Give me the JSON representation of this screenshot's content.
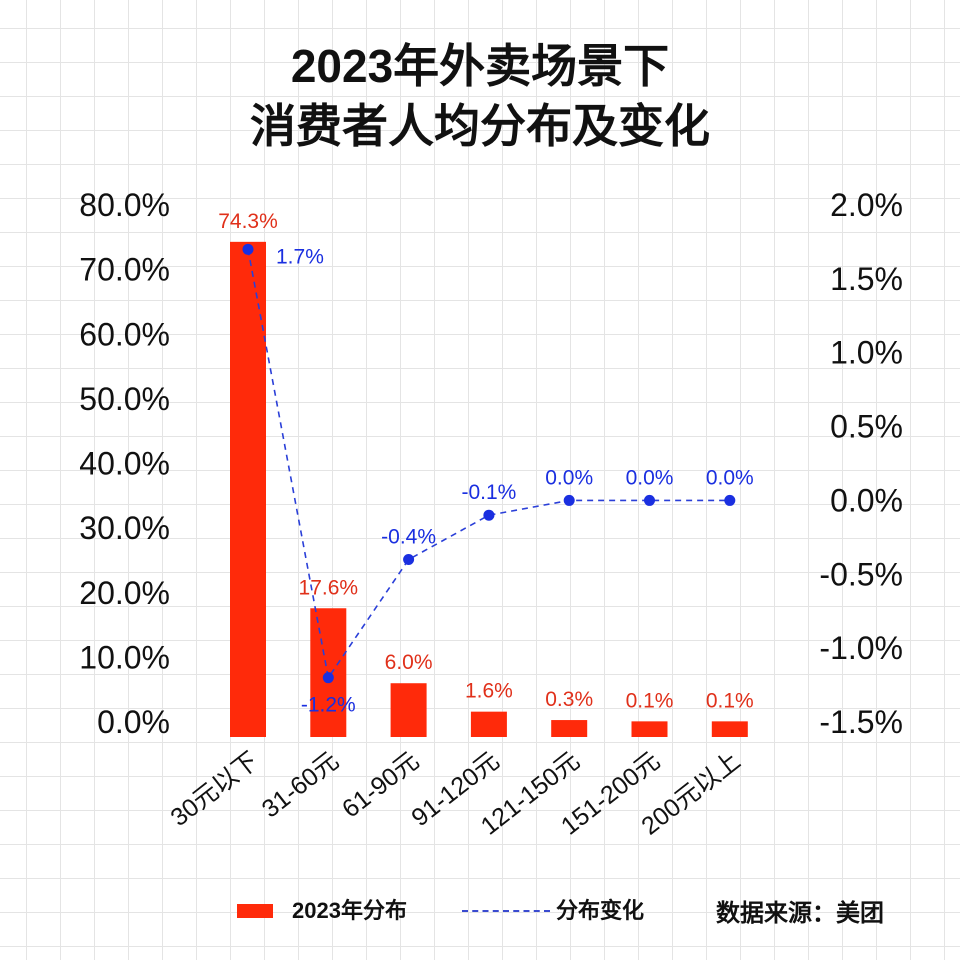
{
  "title": {
    "line1": "2023年外卖场景下",
    "line2": "消费者人均分布及变化"
  },
  "chart_data": {
    "type": "bar+line",
    "categories": [
      "30元以下",
      "31-60元",
      "61-90元",
      "91-120元",
      "121-150元",
      "151-200元",
      "200元以上"
    ],
    "series": [
      {
        "name": "2023年分布",
        "type": "bar",
        "axis": "left",
        "color": "#ff2a0a",
        "values": [
          74.3,
          17.6,
          6.0,
          1.6,
          0.3,
          0.1,
          0.1
        ],
        "labels": [
          "74.3%",
          "17.6%",
          "6.0%",
          "1.6%",
          "0.3%",
          "0.1%",
          "0.1%"
        ]
      },
      {
        "name": "分布变化",
        "type": "line",
        "style": "dashed",
        "axis": "right",
        "color": "#1a2fe0",
        "values": [
          1.7,
          -1.2,
          -0.4,
          -0.1,
          0.0,
          0.0,
          0.0
        ],
        "labels": [
          "1.7%",
          "-1.2%",
          "-0.4%",
          "-0.1%",
          "0.0%",
          "0.0%",
          "0.0%"
        ]
      }
    ],
    "left_axis": {
      "ylim": [
        0,
        80
      ],
      "ticks": [
        "0.0%",
        "10.0%",
        "20.0%",
        "30.0%",
        "40.0%",
        "50.0%",
        "60.0%",
        "70.0%",
        "80.0%"
      ]
    },
    "right_axis": {
      "ylim": [
        -1.5,
        2.0
      ],
      "ticks": [
        "-1.5%",
        "-1.0%",
        "-0.5%",
        "0.0%",
        "0.5%",
        "1.0%",
        "1.5%",
        "2.0%"
      ]
    },
    "legend": "bottom",
    "grid": true
  },
  "source": "数据来源：美团"
}
